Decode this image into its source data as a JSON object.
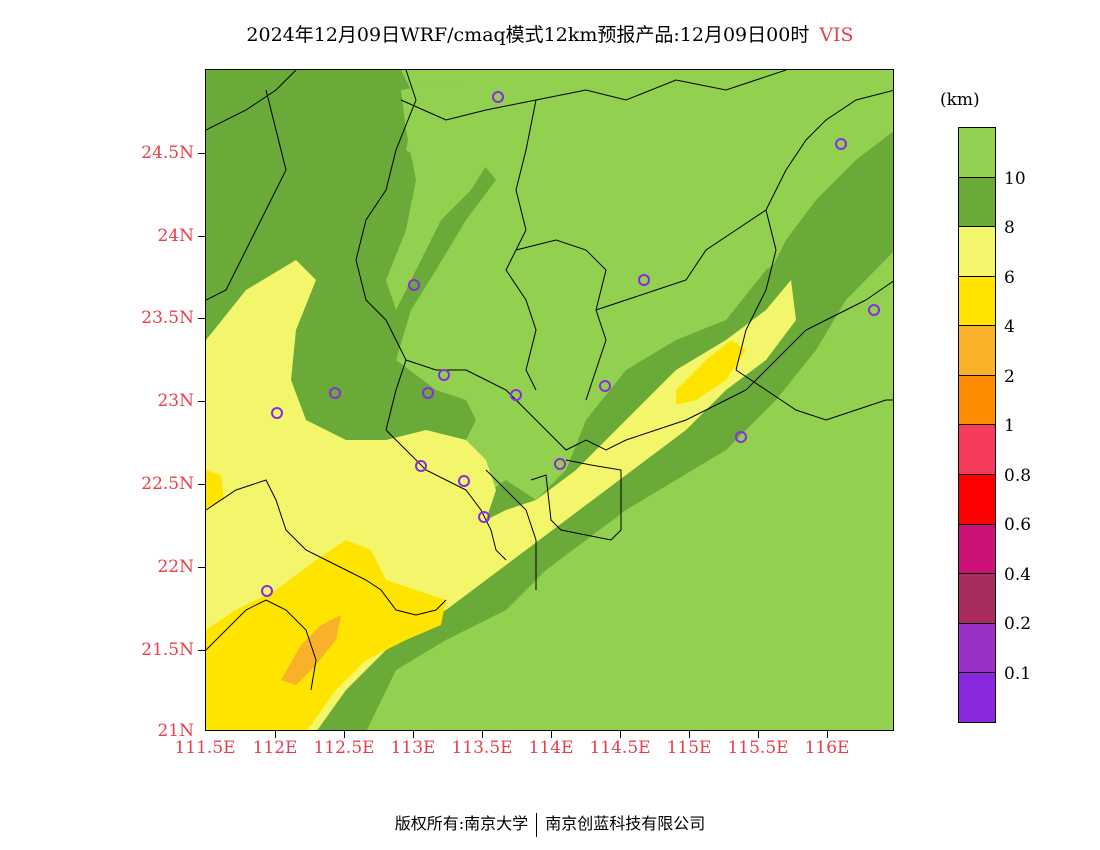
{
  "title": {
    "main": "2024年12月09日WRF/cmaq模式12km预报产品:12月09日00时",
    "variable": "VIS"
  },
  "axes": {
    "lat_labels": [
      "24.5N",
      "24N",
      "23.5N",
      "23N",
      "22.5N",
      "22N",
      "21.5N",
      "21N"
    ],
    "lon_labels": [
      "111.5E",
      "112E",
      "112.5E",
      "113E",
      "113.5E",
      "114E",
      "114.5E",
      "115E",
      "115.5E",
      "116E"
    ]
  },
  "legend": {
    "unit": "(km)",
    "labels": [
      "10",
      "8",
      "6",
      "4",
      "2",
      "1",
      "0.8",
      "0.6",
      "0.4",
      "0.2",
      "0.1"
    ],
    "colors": [
      "#92d050",
      "#6aaa38",
      "#f3f66a",
      "#ffe400",
      "#f9b12a",
      "#ff8c00",
      "#f53a5c",
      "#ff0000",
      "#cc1078",
      "#a82c5e",
      "#9a30c8",
      "#8a28e0"
    ]
  },
  "map": {
    "colors": {
      "vis_gt10": "#92d050",
      "vis_8_10": "#6aaa38",
      "vis_6_8": "#f3f66a",
      "vis_4_6": "#ffe400",
      "vis_2_4": "#f9b12a",
      "station": "#8a2be2"
    }
  },
  "footer": {
    "left": "版权所有:南京大学",
    "right": "南京创蓝科技有限公司"
  }
}
